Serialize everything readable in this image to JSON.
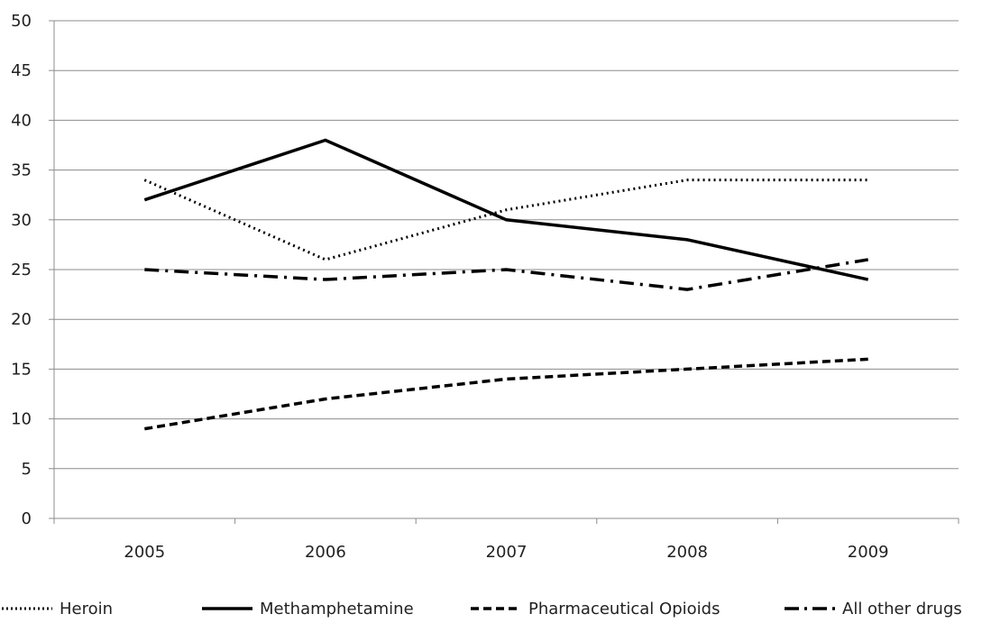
{
  "chart_data": {
    "type": "line",
    "title": "",
    "xlabel": "",
    "ylabel": "",
    "categories": [
      "2005",
      "2006",
      "2007",
      "2008",
      "2009"
    ],
    "ylim": [
      0,
      50
    ],
    "yticks": [
      "0",
      "5",
      "10",
      "15",
      "20",
      "25",
      "30",
      "35",
      "40",
      "45",
      "50"
    ],
    "grid": true,
    "legend_position": "bottom",
    "series": [
      {
        "name": "Heroin",
        "values": [
          34,
          26,
          31,
          34,
          34
        ],
        "style": "dotted",
        "color": "#000000"
      },
      {
        "name": "Methamphetamine",
        "values": [
          32,
          38,
          30,
          28,
          24
        ],
        "style": "solid",
        "color": "#000000"
      },
      {
        "name": "Pharmaceutical Opioids",
        "values": [
          9,
          12,
          14,
          15,
          16
        ],
        "style": "dashed",
        "color": "#000000"
      },
      {
        "name": "All other drugs",
        "values": [
          25,
          24,
          25,
          23,
          26
        ],
        "style": "dash-dot",
        "color": "#000000"
      }
    ]
  }
}
